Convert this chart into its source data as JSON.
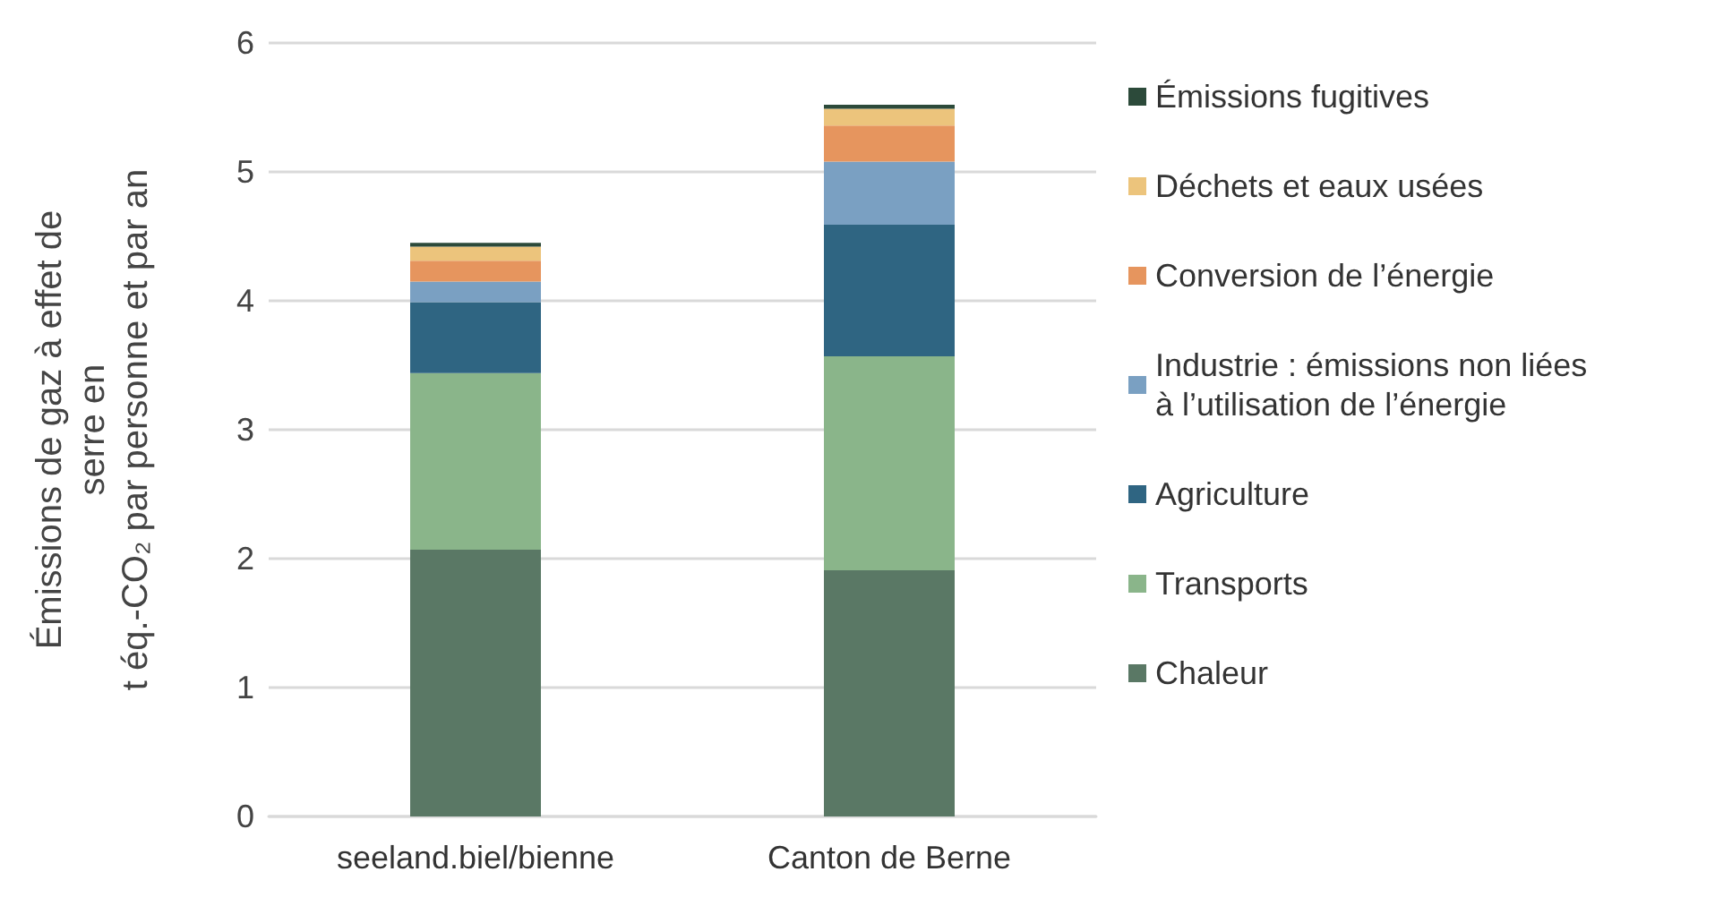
{
  "chart_data": {
    "type": "bar",
    "stacked": true,
    "ylabel": "Émissions de gaz à effet de\nserre en\nt éq.-CO₂ par personne et par an",
    "categories": [
      "seeland.biel/bienne",
      "Canton de Berne"
    ],
    "series": [
      {
        "name": "Chaleur",
        "color": "#5a7865",
        "values": [
          2.07,
          1.91
        ]
      },
      {
        "name": "Transports",
        "color": "#8ab58a",
        "values": [
          1.37,
          1.66
        ]
      },
      {
        "name": "Agriculture",
        "color": "#2f6582",
        "values": [
          0.55,
          1.02
        ]
      },
      {
        "name": "Industrie : émissions non liées\nà l’utilisation de l’énergie",
        "color": "#7aa0c2",
        "values": [
          0.16,
          0.49
        ]
      },
      {
        "name": "Conversion de l’énergie",
        "color": "#e6955e",
        "values": [
          0.16,
          0.28
        ]
      },
      {
        "name": "Déchets et eaux usées",
        "color": "#ecc47c",
        "values": [
          0.11,
          0.13
        ]
      },
      {
        "name": "Émissions fugitives",
        "color": "#2c4a3a",
        "values": [
          0.03,
          0.03
        ]
      }
    ],
    "ylim": [
      0,
      6
    ],
    "yticks": [
      0,
      1,
      2,
      3,
      4,
      5,
      6
    ],
    "grid": "y",
    "legend": "right"
  }
}
